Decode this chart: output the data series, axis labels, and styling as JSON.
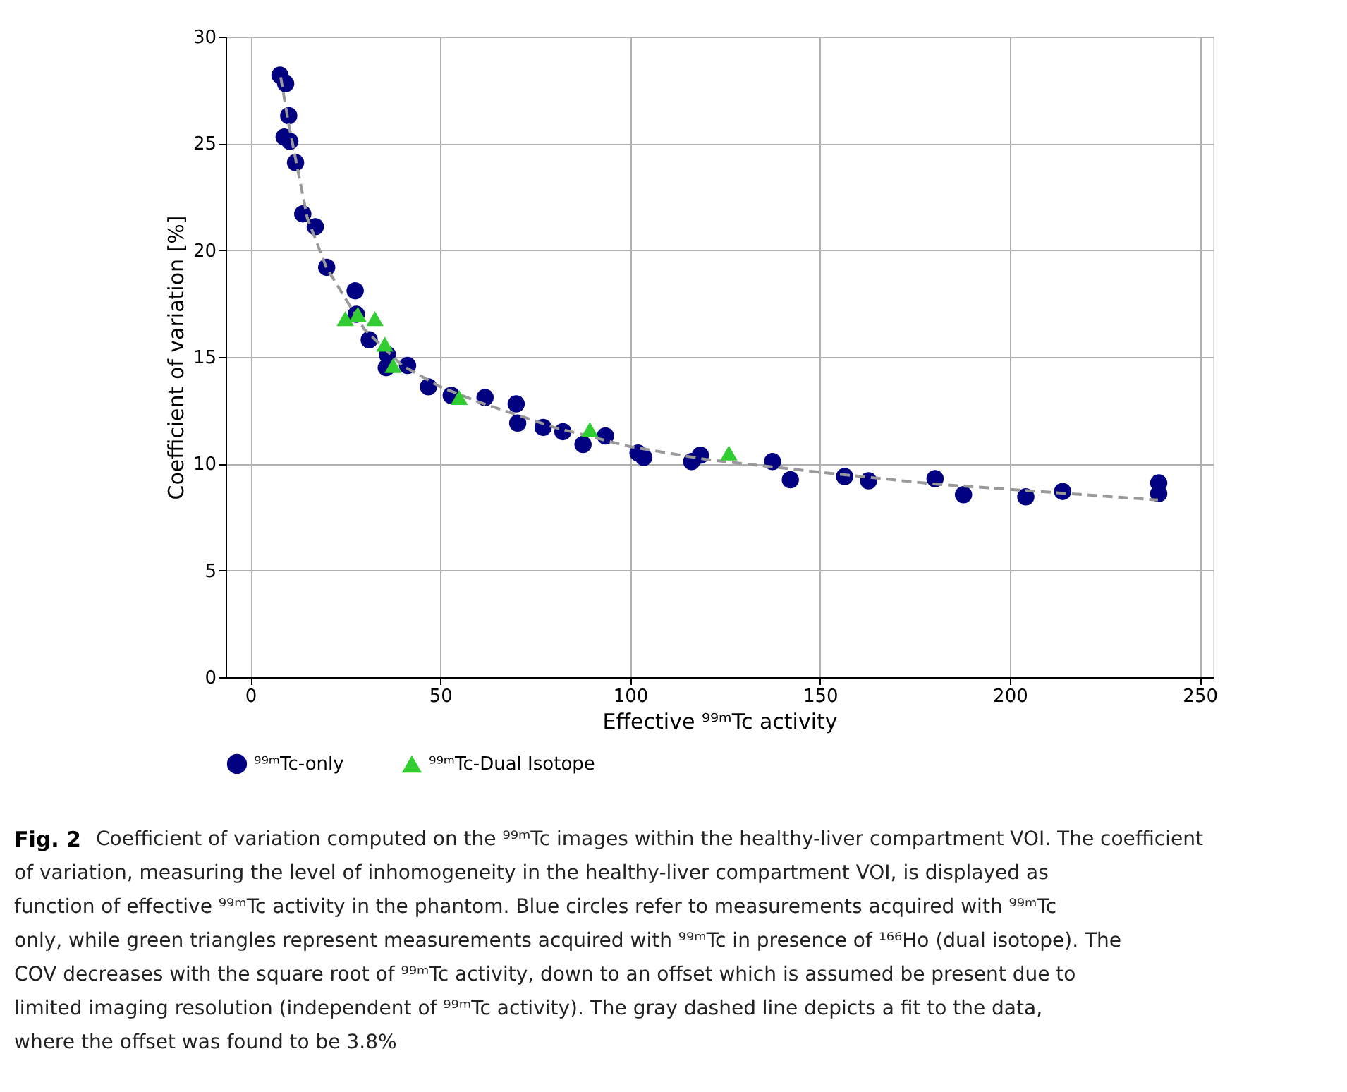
{
  "chart_data": {
    "type": "scatter",
    "xlabel": "Effective ⁹⁹ᵐTc activity",
    "ylabel": "Coefficient of variation [%]",
    "xlim": [
      -6.5,
      253.5
    ],
    "xticks": [
      0,
      50,
      100,
      150,
      200,
      250
    ],
    "ylim": [
      0,
      30
    ],
    "yticks": [
      0,
      5,
      10,
      15,
      20,
      25,
      30
    ],
    "grid": true,
    "legend": "bottom",
    "series": [
      {
        "name": "⁹⁹ᵐTc-only",
        "color": "#000080",
        "marker": "circle",
        "x": [
          7.8,
          9.3,
          10.1,
          8.9,
          10.4,
          11.9,
          13.8,
          17.1,
          20.1,
          27.6,
          27.9,
          31.3,
          35.8,
          36.1,
          41.4,
          46.9,
          52.9,
          61.8,
          70.0,
          70.4,
          77.1,
          82.3,
          87.6,
          93.5,
          102.1,
          103.6,
          116.2,
          118.5,
          137.5,
          142.2,
          156.5,
          162.8,
          180.3,
          187.8,
          204.2,
          213.9,
          239.2,
          239.2
        ],
        "values": [
          28.2,
          27.8,
          26.3,
          25.3,
          25.1,
          24.1,
          21.7,
          21.1,
          19.2,
          18.1,
          17.0,
          15.8,
          14.5,
          15.1,
          14.6,
          13.6,
          13.2,
          13.1,
          12.8,
          11.9,
          11.7,
          11.5,
          10.9,
          11.3,
          10.5,
          10.3,
          10.1,
          10.4,
          10.1,
          9.25,
          9.4,
          9.2,
          9.3,
          8.55,
          8.45,
          8.7,
          9.1,
          8.6
        ]
      },
      {
        "name": "⁹⁹ᵐTc-Dual Isotope",
        "color": "#32cd32",
        "marker": "triangle",
        "x": [
          25.0,
          28.3,
          32.8,
          35.4,
          37.6,
          55.0,
          89.4,
          126.0
        ],
        "values": [
          16.8,
          17.0,
          16.8,
          15.6,
          14.6,
          13.1,
          11.6,
          10.5
        ]
      },
      {
        "type": "line",
        "color": "#999999",
        "line_style": "dashed",
        "marker": "none",
        "x": [
          8,
          10,
          15,
          20,
          30,
          40,
          50,
          60,
          80,
          100,
          120,
          150,
          180,
          200,
          239
        ],
        "values": [
          28.1,
          26.0,
          21.5,
          19.2,
          16.3,
          14.6,
          13.6,
          12.9,
          11.7,
          10.8,
          10.2,
          9.6,
          9.05,
          8.8,
          8.3
        ]
      }
    ],
    "annotations": [
      "Fig. 2",
      "Coefficient of variation computed on the ⁹⁹ᵐTc images within the healthy-liver compartment VOI. The coefficient of variation, measuring the level of inhomogeneity in the healthy-liver compartment VOI, is displayed as function of effective ⁹⁹ᵐTc activity in the phantom. Blue circles refer to measurements acquired with ⁹⁹ᵐTc only, while green triangles represent measurements acquired with ⁹⁹ᵐTc in presence of ¹⁶⁶Ho (dual isotope). The COV decreases with the square root of ⁹⁹ᵐTc activity, down to an offset which is assumed be present due to limited imaging resolution (independent of ⁹⁹ᵐTc activity). The gray dashed line depicts a fit to the data, where the offset was found to be 3.8%"
    ]
  }
}
